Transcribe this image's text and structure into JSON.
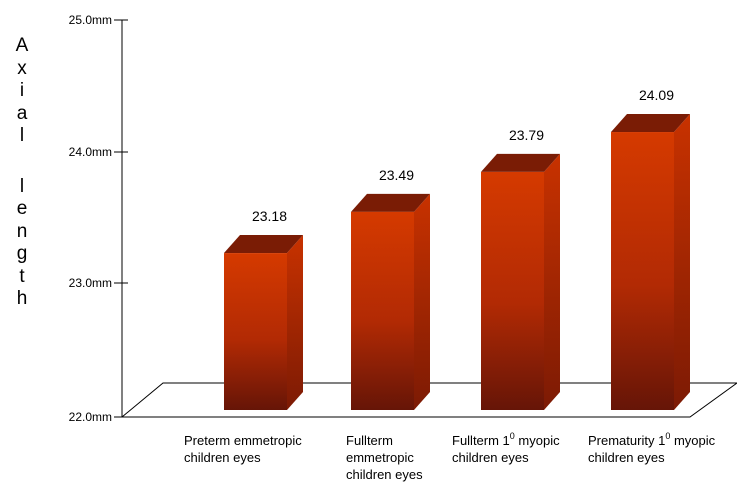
{
  "chart_data": {
    "type": "bar",
    "title": "",
    "ylabel": "Axial length",
    "ylim": [
      22.0,
      25.0
    ],
    "yticks": [
      "22.0mm",
      "23.0mm",
      "24.0mm",
      "25.0mm"
    ],
    "categories": [
      [
        "Preterm emmetropic",
        "children eyes"
      ],
      [
        "Fullterm",
        "emmetropic",
        "children eyes"
      ],
      [
        "Fullterm 1",
        "0",
        " myopic",
        "children eyes"
      ],
      [
        "Prematurity 1",
        "0",
        " myopic",
        "children eyes"
      ]
    ],
    "values": [
      23.18,
      23.49,
      23.79,
      24.09
    ],
    "value_labels": [
      "23.18",
      "23.49",
      "23.79",
      "24.09"
    ],
    "bar_color": "#cc3300",
    "bar_top_color": "#7a1c05",
    "bar_side_color": "#a82800",
    "grid": false,
    "legend": "none"
  }
}
